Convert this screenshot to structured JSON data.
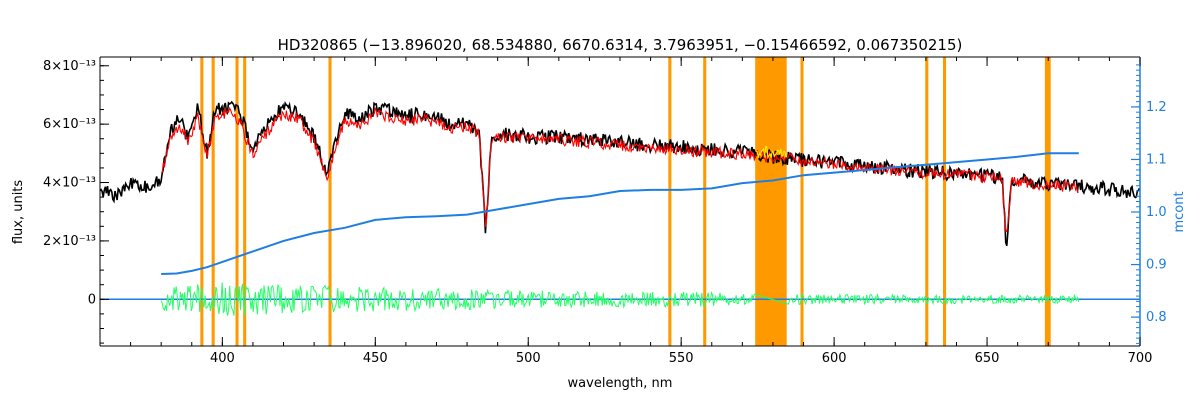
{
  "chart_data": {
    "type": "line",
    "title": "HD320865    (−13.896020, 68.534880, 6670.6314, 3.7963951, −0.15466592, 0.067350215)",
    "xlabel": "wavelength, nm",
    "ylabel": "flux, units",
    "ylabel_right": "mcont",
    "xlim": [
      360,
      700
    ],
    "ylim": [
      -1.6e-13,
      8.3e-13
    ],
    "ylim_right": [
      0.745,
      1.295
    ],
    "grid": false,
    "x_ticks": [
      400,
      450,
      500,
      550,
      600,
      650,
      700
    ],
    "x_tick_labels": [
      "400",
      "450",
      "500",
      "550",
      "600",
      "650",
      "700"
    ],
    "y_ticks": [
      0,
      2e-13,
      4e-13,
      6e-13,
      8e-13
    ],
    "y_tick_labels": [
      "0",
      "2×10⁻¹³",
      "4×10⁻¹³",
      "6×10⁻¹³",
      "8×10⁻¹³"
    ],
    "y_right_ticks": [
      0.8,
      0.9,
      1.0,
      1.1,
      1.2
    ],
    "y_right_tick_labels": [
      "0.8",
      "0.9",
      "1.0",
      "1.1",
      "1.2"
    ],
    "masked_regions": [
      [
        392.8,
        393.8
      ],
      [
        396.5,
        397.5
      ],
      [
        404.3,
        405.3
      ],
      [
        406.8,
        407.8
      ],
      [
        434.7,
        435.7
      ],
      [
        545.8,
        546.8
      ],
      [
        557.2,
        558.2
      ],
      [
        574.2,
        584.5
      ],
      [
        589.0,
        590.0
      ],
      [
        629.8,
        630.8
      ],
      [
        635.6,
        636.6
      ],
      [
        668.9,
        670.8
      ]
    ],
    "series": [
      {
        "role": "observed",
        "x": [
          360,
          365,
          370,
          375,
          380,
          383,
          386,
          389,
          392,
          395,
          398,
          400,
          403,
          406,
          410,
          415,
          420,
          425,
          430,
          434,
          440,
          445,
          450,
          455,
          460,
          465,
          470,
          475,
          480,
          484,
          486.1,
          488,
          492,
          500,
          510,
          520,
          530,
          540,
          550,
          560,
          570,
          575,
          580,
          590,
          600,
          610,
          620,
          630,
          640,
          650,
          655,
          656.3,
          658,
          665,
          670,
          680,
          690,
          700
        ],
        "y": [
          3.8e-13,
          3.6e-13,
          4e-13,
          3.9e-13,
          4.2e-13,
          5.8e-13,
          6.2e-13,
          5.5e-13,
          6.6e-13,
          5e-13,
          6.7e-13,
          6.5e-13,
          6.8e-13,
          6.3e-13,
          5.2e-13,
          6e-13,
          6.7e-13,
          6.4e-13,
          5.6e-13,
          4.4e-13,
          6.4e-13,
          6.2e-13,
          6.6e-13,
          6.5e-13,
          6.3e-13,
          6.4e-13,
          6.3e-13,
          6e-13,
          6.1e-13,
          5.8e-13,
          2.3e-13,
          5.6e-13,
          5.7e-13,
          5.6e-13,
          5.6e-13,
          5.5e-13,
          5.4e-13,
          5.3e-13,
          5.25e-13,
          5.15e-13,
          5.1e-13,
          5.05e-13,
          4.9e-13,
          4.8e-13,
          4.7e-13,
          4.6e-13,
          4.5e-13,
          4.4e-13,
          4.35e-13,
          4.25e-13,
          4.2e-13,
          1.8e-13,
          4.15e-13,
          4.05e-13,
          3.95e-13,
          3.9e-13,
          3.8e-13,
          3.7e-13
        ]
      },
      {
        "role": "model",
        "x": [
          380,
          383,
          386,
          389,
          392,
          395,
          398,
          400,
          403,
          406,
          410,
          415,
          420,
          425,
          430,
          434,
          440,
          445,
          450,
          455,
          460,
          465,
          470,
          475,
          480,
          484,
          486.1,
          488,
          492,
          500,
          510,
          520,
          530,
          540,
          550,
          560,
          570,
          574,
          585,
          590,
          600,
          610,
          620,
          630,
          640,
          650,
          655,
          656.3,
          658,
          665,
          670,
          680
        ],
        "y": [
          4.2e-13,
          5.6e-13,
          6e-13,
          5.4e-13,
          6.3e-13,
          4.9e-13,
          6.4e-13,
          6.3e-13,
          6.5e-13,
          6e-13,
          5e-13,
          5.8e-13,
          6.4e-13,
          6.2e-13,
          5.4e-13,
          4.2e-13,
          6.2e-13,
          6e-13,
          6.4e-13,
          6.3e-13,
          6.15e-13,
          6.2e-13,
          6.1e-13,
          5.9e-13,
          5.95e-13,
          5.7e-13,
          2.4e-13,
          5.5e-13,
          5.6e-13,
          5.5e-13,
          5.5e-13,
          5.4e-13,
          5.3e-13,
          5.2e-13,
          5.15e-13,
          5.05e-13,
          5e-13,
          4.95e-13,
          4.85e-13,
          4.75e-13,
          4.65e-13,
          4.55e-13,
          4.45e-13,
          4.35e-13,
          4.3e-13,
          4.2e-13,
          4.15e-13,
          1.9e-13,
          4.1e-13,
          4e-13,
          3.95e-13,
          3.85e-13
        ]
      },
      {
        "role": "model-masked",
        "x": [
          574.5,
          577,
          580,
          583,
          584.5
        ],
        "y": [
          5.05e-13,
          5.1e-13,
          5e-13,
          5.05e-13,
          4.95e-13
        ]
      },
      {
        "role": "residuals",
        "x": [
          360,
          380,
          400,
          420,
          440,
          460,
          480,
          500,
          520,
          540,
          560,
          574,
          585,
          600,
          620,
          640,
          660,
          680,
          700
        ],
        "y": [
          0,
          4e-14,
          6e-14,
          5e-14,
          4.5e-14,
          4e-14,
          3.5e-14,
          3e-14,
          2.8e-14,
          2.6e-14,
          2.4e-14,
          2e-14,
          1.8e-14,
          1.7e-14,
          1.6e-14,
          1.5e-14,
          1.4e-14,
          1.3e-14,
          0
        ]
      },
      {
        "role": "continuum",
        "axis": "right",
        "x": [
          380,
          385,
          390,
          395,
          400,
          410,
          420,
          430,
          440,
          450,
          460,
          470,
          480,
          490,
          500,
          510,
          520,
          530,
          540,
          550,
          560,
          570,
          580,
          590,
          600,
          610,
          620,
          630,
          640,
          650,
          660,
          670,
          680
        ],
        "y": [
          0.882,
          0.883,
          0.888,
          0.895,
          0.905,
          0.925,
          0.945,
          0.96,
          0.97,
          0.985,
          0.99,
          0.992,
          0.995,
          1.005,
          1.015,
          1.025,
          1.03,
          1.04,
          1.042,
          1.042,
          1.045,
          1.055,
          1.06,
          1.07,
          1.075,
          1.08,
          1.085,
          1.09,
          1.095,
          1.1,
          1.105,
          1.112,
          1.112
        ]
      }
    ]
  },
  "colors": {
    "observed": "#000000",
    "model": "#ff0000",
    "model_masked": "#ffee00",
    "residuals": "#22ff66",
    "continuum": "#1f7fe0",
    "mask": "#ff9900",
    "right_axis": "#1f7fe0"
  }
}
